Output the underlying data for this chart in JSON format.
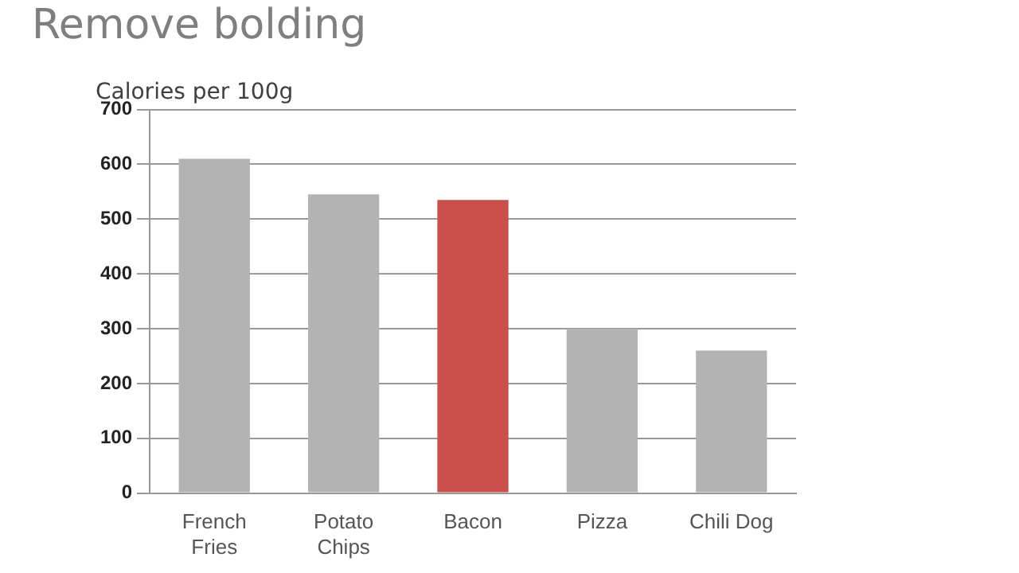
{
  "chart_data": {
    "type": "bar",
    "title": "Remove bolding",
    "subtitle": "Calories per 100g",
    "categories": [
      "French Fries",
      "Potato Chips",
      "Bacon",
      "Pizza",
      "Chili Dog"
    ],
    "values": [
      610,
      545,
      535,
      300,
      260
    ],
    "colors": [
      "#b3b3b3",
      "#b3b3b3",
      "#c9504c",
      "#b3b3b3",
      "#b3b3b3"
    ],
    "ylim": [
      0,
      700
    ],
    "yticks": [
      0,
      100,
      200,
      300,
      400,
      500,
      600,
      700
    ],
    "grid": "y",
    "legend": false
  }
}
